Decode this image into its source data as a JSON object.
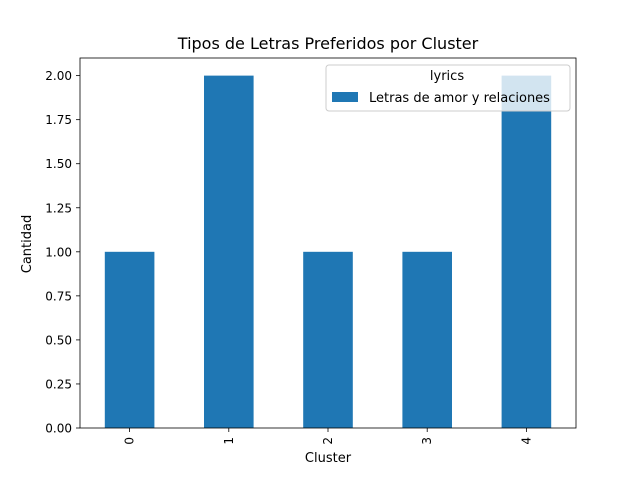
{
  "chart_data": {
    "type": "bar",
    "title": "Tipos de Letras Preferidos por Cluster",
    "xlabel": "Cluster",
    "ylabel": "Cantidad",
    "categories": [
      "0",
      "1",
      "2",
      "3",
      "4"
    ],
    "series": [
      {
        "name": "Letras de amor y relaciones",
        "values": [
          1,
          2,
          1,
          1,
          2
        ],
        "color": "#1f77b4"
      }
    ],
    "ylim": [
      0,
      2.0
    ],
    "yticks": [
      "0.00",
      "0.25",
      "0.50",
      "0.75",
      "1.00",
      "1.25",
      "1.50",
      "1.75",
      "2.00"
    ],
    "legend": {
      "title": "lyrics",
      "placement": "top-right"
    },
    "grid": false
  }
}
